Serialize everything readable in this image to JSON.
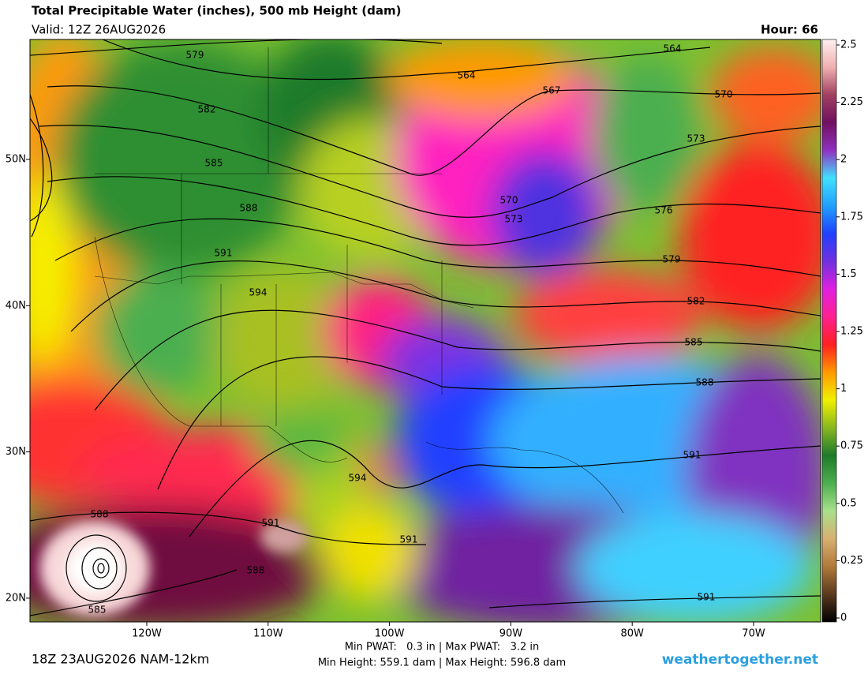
{
  "header": {
    "title": "Total Precipitable Water (inches), 500 mb Height (dam)",
    "valid": "Valid: 12Z 26AUG2026",
    "hour": "Hour: 66"
  },
  "map": {
    "lat_labels": [
      "50N",
      "40N",
      "30N",
      "20N"
    ],
    "lon_labels": [
      "120W",
      "110W",
      "100W",
      "90W",
      "80W",
      "70W"
    ],
    "contour_labels": [
      579,
      564,
      564,
      567,
      570,
      582,
      573,
      585,
      570,
      576,
      588,
      573,
      591,
      579,
      594,
      582,
      585,
      588,
      591,
      594,
      591,
      591,
      588,
      588,
      585,
      591
    ]
  },
  "colorbar": {
    "lim": [
      0,
      2.5
    ],
    "ticks": [
      0,
      0.25,
      0.5,
      0.75,
      1,
      1.25,
      1.5,
      1.75,
      2,
      2.25,
      2.5
    ],
    "colors": [
      "#000000",
      "#5a3a1e",
      "#b07a3a",
      "#d8b070",
      "#a8e08c",
      "#4caf50",
      "#1e7a2a",
      "#88b820",
      "#f0f000",
      "#ff9900",
      "#ff2020",
      "#ff2090",
      "#e020e0",
      "#7030e0",
      "#2040ff",
      "#20a0ff",
      "#40e0ff",
      "#9030c0",
      "#701060",
      "#a04060",
      "#f0b0b0",
      "#fff0f0"
    ]
  },
  "footer": {
    "run": "18Z 23AUG2026 NAM-12km",
    "pwat": "Min PWAT:   0.3 in | Max PWAT:   3.2 in",
    "height": "Min Height: 559.1 dam | Max Height: 596.8 dam",
    "site": "weathertogether.net"
  }
}
